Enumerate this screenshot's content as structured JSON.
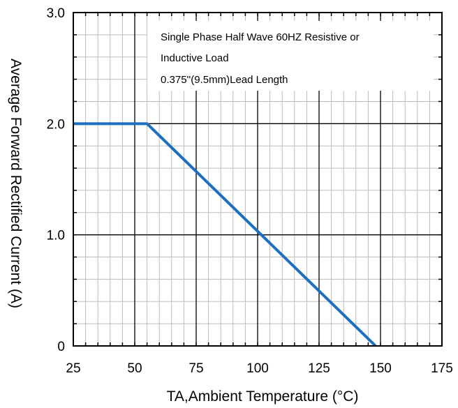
{
  "chart_data": {
    "type": "line",
    "xlabel": "TA,Ambient Temperature (°C)",
    "ylabel": "Average Forward Rectified Current (A)",
    "xlim": [
      25,
      175
    ],
    "ylim": [
      0,
      3
    ],
    "x_ticks": [
      "25",
      "50",
      "75",
      "100",
      "125",
      "150",
      "175"
    ],
    "y_ticks": [
      "0",
      "1.0",
      "2.0",
      "3.0"
    ],
    "x_major_step": 25,
    "x_minor_step": 5,
    "y_major_step": 1,
    "y_minor_step": 0.2,
    "grid": true,
    "annotations": [
      "Single Phase Half Wave 60HZ Resistive or",
      "Inductive Load",
      "0.375''(9.5mm)Lead Length"
    ],
    "series": [
      {
        "x": [
          25,
          55,
          148
        ],
        "y": [
          2.0,
          2.0,
          0.0
        ]
      }
    ],
    "colors": {
      "line": "#1f6fbf",
      "grid": "#000000",
      "minor_grid": "#bdbdbd"
    }
  }
}
